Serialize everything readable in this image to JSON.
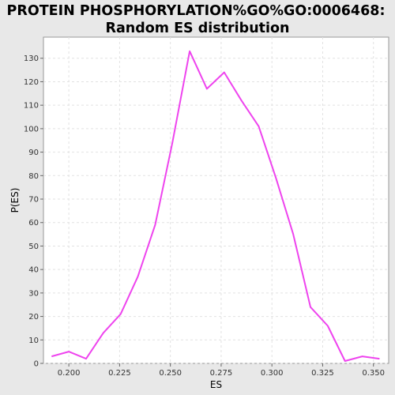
{
  "chart_data": {
    "type": "line",
    "title": [
      "PROTEIN PHOSPHORYLATION%GO%GO:0006468:",
      "Random ES distribution"
    ],
    "xlabel": "ES",
    "ylabel": "P(ES)",
    "xlim": [
      0.1875,
      0.3575
    ],
    "ylim": [
      0,
      139
    ],
    "xticks": [
      0.2,
      0.225,
      0.25,
      0.275,
      0.3,
      0.325,
      0.35
    ],
    "xtick_labels": [
      "0.200",
      "0.225",
      "0.250",
      "0.275",
      "0.300",
      "0.325",
      "0.350"
    ],
    "yticks": [
      0,
      10,
      20,
      30,
      40,
      50,
      60,
      70,
      80,
      90,
      100,
      110,
      120,
      130
    ],
    "ytick_labels": [
      "0",
      "10",
      "20",
      "30",
      "40",
      "50",
      "60",
      "70",
      "80",
      "90",
      "100",
      "110",
      "120",
      "130"
    ],
    "grid": true,
    "series": [
      {
        "color": "#ee44ee",
        "x": [
          0.1915,
          0.2,
          0.2085,
          0.217,
          0.2255,
          0.234,
          0.2425,
          0.251,
          0.2595,
          0.268,
          0.2765,
          0.285,
          0.2935,
          0.302,
          0.3105,
          0.319,
          0.3275,
          0.336,
          0.3445,
          0.353
        ],
        "y": [
          3,
          5,
          2,
          13,
          21,
          37,
          59,
          94,
          133,
          117,
          124,
          112,
          101,
          79,
          55,
          24,
          16,
          1,
          3,
          2
        ]
      }
    ]
  }
}
